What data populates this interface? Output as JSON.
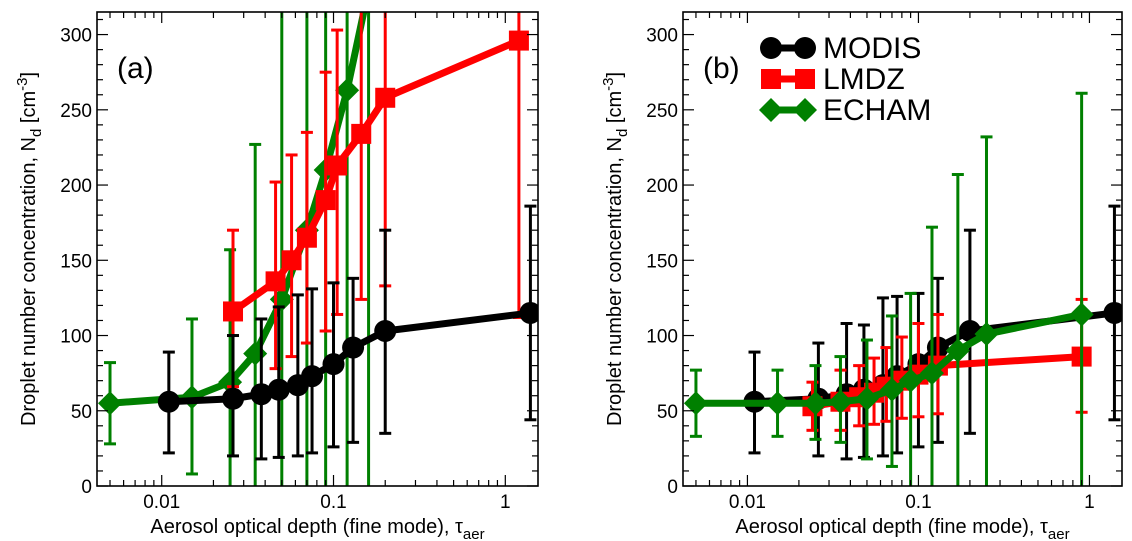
{
  "colors": {
    "MODIS": "#000000",
    "LMDZ": "#ff0000",
    "ECHAM": "#008000"
  },
  "chart_data": [
    {
      "type": "scatter",
      "panel_label": "(a)",
      "xscale": "log",
      "xlim": [
        0.0042,
        1.55
      ],
      "ylim": [
        0,
        315
      ],
      "x_tick_labels": [
        {
          "v": 0.01,
          "t": "0.01"
        },
        {
          "v": 0.1,
          "t": "0.1"
        },
        {
          "v": 1,
          "t": "1"
        }
      ],
      "y_tick_labels": [
        {
          "v": 0,
          "t": "0"
        },
        {
          "v": 50,
          "t": "50"
        },
        {
          "v": 100,
          "t": "100"
        },
        {
          "v": 150,
          "t": "150"
        },
        {
          "v": 200,
          "t": "200"
        },
        {
          "v": 250,
          "t": "250"
        },
        {
          "v": 300,
          "t": "300"
        }
      ],
      "xlabel": "Aerosol optical depth (fine mode), τ",
      "xlabel_sub": "aer",
      "ylabel": "Droplet number concentration, N",
      "ylabel_sub": "d",
      "ylabel_unit_open": " [cm",
      "ylabel_sup": "-3",
      "ylabel_unit_close": "]",
      "legend": false,
      "series": [
        {
          "name": "ECHAM",
          "marker": "diamond",
          "x": [
            0.005,
            0.015,
            0.025,
            0.035,
            0.05,
            0.07,
            0.09,
            0.12,
            0.16
          ],
          "y": [
            55,
            59,
            69,
            88,
            124,
            170,
            210,
            263,
            330
          ],
          "err_low": [
            28,
            8,
            0,
            0,
            0,
            0,
            0,
            0,
            0
          ],
          "err_high": [
            82,
            111,
            157,
            227,
            400,
            400,
            400,
            400,
            400
          ]
        },
        {
          "name": "LMDZ",
          "marker": "square",
          "x": [
            0.026,
            0.046,
            0.057,
            0.07,
            0.09,
            0.105,
            0.145,
            0.2,
            1.2
          ],
          "y": [
            116,
            136,
            150,
            165,
            190,
            213,
            234,
            258,
            296
          ],
          "err_low": [
            66,
            78,
            86,
            95,
            103,
            114,
            124,
            133,
            112
          ],
          "err_high": [
            170,
            202,
            220,
            235,
            275,
            303,
            400,
            400,
            400
          ]
        },
        {
          "name": "MODIS",
          "marker": "circle",
          "x": [
            0.011,
            0.026,
            0.038,
            0.048,
            0.062,
            0.075,
            0.1,
            0.13,
            0.2,
            1.4
          ],
          "y": [
            56,
            58,
            61,
            64,
            67,
            73,
            81,
            92,
            103,
            115
          ],
          "err_low": [
            22,
            20,
            18,
            19,
            20,
            22,
            26,
            29,
            35,
            44
          ],
          "err_high": [
            89,
            100,
            111,
            119,
            127,
            131,
            135,
            138,
            170,
            186
          ]
        }
      ]
    },
    {
      "type": "scatter",
      "panel_label": "(b)",
      "xscale": "log",
      "xlim": [
        0.0042,
        1.55
      ],
      "ylim": [
        0,
        315
      ],
      "x_tick_labels": [
        {
          "v": 0.01,
          "t": "0.01"
        },
        {
          "v": 0.1,
          "t": "0.1"
        },
        {
          "v": 1,
          "t": "1"
        }
      ],
      "y_tick_labels": [
        {
          "v": 0,
          "t": "0"
        },
        {
          "v": 50,
          "t": "50"
        },
        {
          "v": 100,
          "t": "100"
        },
        {
          "v": 150,
          "t": "150"
        },
        {
          "v": 200,
          "t": "200"
        },
        {
          "v": 250,
          "t": "250"
        },
        {
          "v": 300,
          "t": "300"
        }
      ],
      "xlabel": "Aerosol optical depth (fine mode), τ",
      "xlabel_sub": "aer",
      "ylabel": "Droplet number concentration, N",
      "ylabel_sub": "d",
      "ylabel_unit_open": " [cm",
      "ylabel_sup": "-3",
      "ylabel_unit_close": "]",
      "legend": true,
      "legend_position": "top-center",
      "legend_entries": [
        "MODIS",
        "LMDZ",
        "ECHAM"
      ],
      "series": [
        {
          "name": "MODIS",
          "marker": "circle",
          "x": [
            0.011,
            0.026,
            0.038,
            0.048,
            0.062,
            0.075,
            0.1,
            0.13,
            0.2,
            1.4
          ],
          "y": [
            56,
            58,
            61,
            64,
            67,
            73,
            81,
            92,
            103,
            115
          ],
          "err_low": [
            22,
            20,
            18,
            19,
            20,
            22,
            26,
            29,
            35,
            44
          ],
          "err_high": [
            89,
            95,
            108,
            107,
            125,
            126,
            128,
            138,
            170,
            186
          ]
        },
        {
          "name": "LMDZ",
          "marker": "square",
          "x": [
            0.024,
            0.035,
            0.045,
            0.055,
            0.065,
            0.08,
            0.1,
            0.13,
            0.9
          ],
          "y": [
            53,
            56,
            59,
            62,
            66,
            70,
            74,
            80,
            86
          ],
          "err_low": [
            37,
            37,
            40,
            41,
            43,
            45,
            46,
            48,
            49
          ],
          "err_high": [
            69,
            77,
            80,
            85,
            92,
            99,
            108,
            114,
            124
          ]
        },
        {
          "name": "ECHAM",
          "marker": "diamond",
          "x": [
            0.005,
            0.015,
            0.025,
            0.035,
            0.05,
            0.07,
            0.09,
            0.12,
            0.17,
            0.25,
            0.9
          ],
          "y": [
            55,
            55,
            55,
            56,
            58,
            64,
            70,
            75,
            90,
            101,
            114
          ],
          "err_low": [
            33,
            33,
            31,
            29,
            18,
            13,
            0,
            0,
            0,
            0,
            0
          ],
          "err_high": [
            77,
            77,
            80,
            86,
            97,
            113,
            128,
            172,
            207,
            232,
            261
          ]
        }
      ]
    }
  ]
}
